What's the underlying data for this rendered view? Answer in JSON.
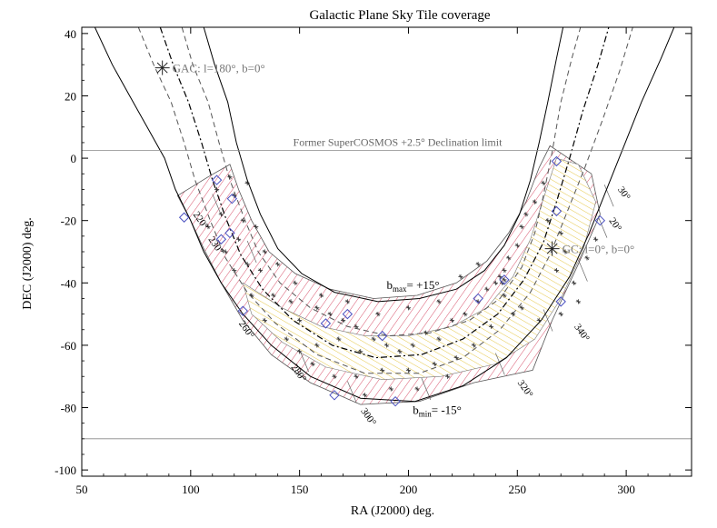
{
  "chart_data": {
    "type": "line",
    "title": "Galactic Plane Sky Tile coverage",
    "xlabel": "RA (J2000) deg.",
    "ylabel": "DEC (J2000) deg.",
    "xlim": [
      50,
      330
    ],
    "ylim": [
      -102,
      42
    ],
    "xticks": [
      50,
      100,
      150,
      200,
      250,
      300
    ],
    "yticks": [
      -100,
      -80,
      -60,
      -40,
      -20,
      0,
      20,
      40
    ],
    "reference_lines": [
      {
        "label": "Former SuperCOSMOS +2.5° Declination limit",
        "dec": 2.5
      },
      {
        "label": "",
        "dec": -90
      }
    ],
    "curves": {
      "outer_west": [
        [
          56,
          42
        ],
        [
          64,
          30
        ],
        [
          72,
          20
        ],
        [
          80,
          10
        ],
        [
          88,
          0
        ],
        [
          93,
          -10
        ],
        [
          100,
          -20
        ],
        [
          106,
          -30
        ],
        [
          114,
          -40
        ],
        [
          124,
          -50
        ],
        [
          137,
          -60
        ],
        [
          155,
          -70
        ],
        [
          178,
          -77
        ],
        [
          203,
          -78
        ],
        [
          225,
          -73
        ],
        [
          245,
          -64
        ],
        [
          261,
          -52
        ],
        [
          274,
          -38
        ],
        [
          283,
          -24
        ],
        [
          291,
          -10
        ],
        [
          299,
          4
        ],
        [
          307,
          18
        ],
        [
          316,
          32
        ],
        [
          322,
          42
        ]
      ],
      "dashed_west": [
        [
          76,
          42
        ],
        [
          83,
          30
        ],
        [
          91,
          18
        ],
        [
          97,
          5
        ],
        [
          102,
          -7
        ],
        [
          109,
          -20
        ],
        [
          116,
          -32
        ],
        [
          126,
          -43
        ],
        [
          139,
          -53
        ],
        [
          158,
          -63
        ],
        [
          180,
          -69
        ],
        [
          205,
          -69
        ],
        [
          225,
          -64
        ],
        [
          242,
          -55
        ],
        [
          256,
          -43
        ],
        [
          265,
          -31
        ],
        [
          273,
          -17
        ],
        [
          281,
          -3
        ],
        [
          289,
          12
        ],
        [
          297,
          28
        ],
        [
          303,
          42
        ]
      ],
      "plane": [
        [
          86,
          42
        ],
        [
          92,
          30
        ],
        [
          99,
          18
        ],
        [
          105,
          5
        ],
        [
          110,
          -7
        ],
        [
          116,
          -19
        ],
        [
          123,
          -31
        ],
        [
          133,
          -42
        ],
        [
          147,
          -52
        ],
        [
          165,
          -60
        ],
        [
          185,
          -64
        ],
        [
          206,
          -63
        ],
        [
          225,
          -58
        ],
        [
          241,
          -50
        ],
        [
          253,
          -39
        ],
        [
          262,
          -27
        ],
        [
          268,
          -14
        ],
        [
          274,
          0
        ],
        [
          280,
          15
        ],
        [
          287,
          30
        ],
        [
          292,
          42
        ]
      ],
      "dashed_east": [
        [
          96,
          42
        ],
        [
          101,
          30
        ],
        [
          108,
          18
        ],
        [
          113,
          5
        ],
        [
          118,
          -7
        ],
        [
          125,
          -20
        ],
        [
          131,
          -30
        ],
        [
          141,
          -40
        ],
        [
          155,
          -48
        ],
        [
          172,
          -54
        ],
        [
          191,
          -57
        ],
        [
          210,
          -56
        ],
        [
          228,
          -52
        ],
        [
          242,
          -45
        ],
        [
          252,
          -35
        ],
        [
          258,
          -24
        ],
        [
          262,
          -12
        ],
        [
          266,
          2
        ],
        [
          270,
          18
        ],
        [
          275,
          32
        ],
        [
          279,
          42
        ]
      ],
      "outer_east": [
        [
          106,
          42
        ],
        [
          111,
          30
        ],
        [
          117,
          18
        ],
        [
          121,
          5
        ],
        [
          126,
          -7
        ],
        [
          132,
          -18
        ],
        [
          140,
          -29
        ],
        [
          151,
          -37
        ],
        [
          166,
          -43
        ],
        [
          186,
          -46
        ],
        [
          205,
          -45
        ],
        [
          222,
          -42
        ],
        [
          235,
          -36
        ],
        [
          244,
          -28
        ],
        [
          251,
          -18
        ],
        [
          256,
          -7
        ],
        [
          260,
          5
        ],
        [
          264,
          18
        ],
        [
          268,
          32
        ],
        [
          271,
          42
        ]
      ]
    },
    "tile_region": {
      "outer": [
        [
          94,
          -12
        ],
        [
          108,
          -6
        ],
        [
          118,
          -2
        ],
        [
          122,
          -10
        ],
        [
          128,
          -20
        ],
        [
          136,
          -30
        ],
        [
          148,
          -37
        ],
        [
          164,
          -42
        ],
        [
          184,
          -45
        ],
        [
          204,
          -44
        ],
        [
          222,
          -40
        ],
        [
          236,
          -33
        ],
        [
          246,
          -24
        ],
        [
          254,
          -14
        ],
        [
          260,
          -3
        ],
        [
          265,
          4
        ],
        [
          284,
          -5
        ],
        [
          288,
          -18
        ],
        [
          278,
          -34
        ],
        [
          266,
          -52
        ],
        [
          257,
          -68
        ],
        [
          230,
          -72
        ],
        [
          205,
          -78
        ],
        [
          178,
          -79
        ],
        [
          155,
          -72
        ],
        [
          137,
          -63
        ],
        [
          124,
          -52
        ],
        [
          114,
          -40
        ],
        [
          106,
          -29
        ],
        [
          100,
          -20
        ]
      ],
      "yellow_band": [
        [
          124,
          -40
        ],
        [
          142,
          -48
        ],
        [
          160,
          -54
        ],
        [
          180,
          -57
        ],
        [
          200,
          -57
        ],
        [
          220,
          -54
        ],
        [
          236,
          -48
        ],
        [
          248,
          -38
        ],
        [
          256,
          -26
        ],
        [
          262,
          -13
        ],
        [
          268,
          0
        ],
        [
          278,
          -2
        ],
        [
          286,
          -14
        ],
        [
          280,
          -30
        ],
        [
          270,
          -45
        ],
        [
          258,
          -58
        ],
        [
          240,
          -66
        ],
        [
          215,
          -70
        ],
        [
          188,
          -71
        ],
        [
          162,
          -67
        ],
        [
          142,
          -59
        ],
        [
          128,
          -50
        ]
      ],
      "galactic_tick_positions": [
        [
          110,
          -15
        ],
        [
          126,
          -30
        ],
        [
          150,
          -65
        ],
        [
          172,
          -75
        ],
        [
          206,
          -74
        ],
        [
          240,
          -66
        ],
        [
          262,
          -52
        ],
        [
          278,
          -36
        ],
        [
          287,
          -22
        ],
        [
          290,
          -12
        ]
      ]
    },
    "annotations": [
      {
        "text": "GAC: l=180°, b=0°",
        "ra": 87,
        "dec": 29
      },
      {
        "text": "GC: l=0°, b=0°",
        "ra": 266,
        "dec": -29
      },
      {
        "text": "b",
        "sub": "max",
        "tail": "= +15°",
        "ra": 190,
        "dec": -42
      },
      {
        "text": "b",
        "sub": "min",
        "tail": "= -15°",
        "ra": 202,
        "dec": -82
      }
    ],
    "galactic_longitude_labels": [
      {
        "text": "220°",
        "ra": 101,
        "dec": -18
      },
      {
        "text": "230°",
        "ra": 108,
        "dec": -26
      },
      {
        "text": "260°",
        "ra": 122,
        "dec": -53
      },
      {
        "text": "280°",
        "ra": 146,
        "dec": -67
      },
      {
        "text": "300°",
        "ra": 178,
        "dec": -81
      },
      {
        "text": "320°",
        "ra": 250,
        "dec": -72
      },
      {
        "text": "340°",
        "ra": 276,
        "dec": -54
      },
      {
        "text": "20°",
        "ra": 292,
        "dec": -20
      },
      {
        "text": "30°",
        "ra": 296,
        "dec": -10
      }
    ],
    "stars": [
      [
        118,
        -6
      ],
      [
        112,
        -10
      ],
      [
        120,
        -12
      ],
      [
        126,
        -8
      ],
      [
        108,
        -22
      ],
      [
        114,
        -18
      ],
      [
        122,
        -26
      ],
      [
        130,
        -22
      ],
      [
        126,
        -34
      ],
      [
        134,
        -30
      ],
      [
        140,
        -34
      ],
      [
        138,
        -44
      ],
      [
        146,
        -46
      ],
      [
        150,
        -52
      ],
      [
        158,
        -48
      ],
      [
        164,
        -50
      ],
      [
        170,
        -52
      ],
      [
        176,
        -54
      ],
      [
        168,
        -58
      ],
      [
        158,
        -60
      ],
      [
        150,
        -62
      ],
      [
        178,
        -62
      ],
      [
        184,
        -58
      ],
      [
        190,
        -60
      ],
      [
        196,
        -62
      ],
      [
        202,
        -60
      ],
      [
        208,
        -56
      ],
      [
        214,
        -58
      ],
      [
        220,
        -52
      ],
      [
        226,
        -50
      ],
      [
        232,
        -46
      ],
      [
        236,
        -42
      ],
      [
        240,
        -40
      ],
      [
        244,
        -36
      ],
      [
        246,
        -32
      ],
      [
        250,
        -28
      ],
      [
        252,
        -22
      ],
      [
        254,
        -18
      ],
      [
        258,
        -14
      ],
      [
        262,
        -8
      ],
      [
        264,
        -20
      ],
      [
        270,
        -24
      ],
      [
        272,
        -30
      ],
      [
        268,
        -36
      ],
      [
        276,
        -40
      ],
      [
        282,
        -32
      ],
      [
        286,
        -26
      ],
      [
        278,
        -46
      ],
      [
        270,
        -50
      ],
      [
        260,
        -52
      ],
      [
        252,
        -48
      ],
      [
        244,
        -44
      ],
      [
        238,
        -54
      ],
      [
        230,
        -60
      ],
      [
        222,
        -64
      ],
      [
        212,
        -66
      ],
      [
        200,
        -68
      ],
      [
        188,
        -68
      ],
      [
        176,
        -70
      ],
      [
        166,
        -70
      ],
      [
        156,
        -66
      ],
      [
        144,
        -58
      ],
      [
        134,
        -52
      ],
      [
        128,
        -44
      ],
      [
        120,
        -36
      ],
      [
        116,
        -30
      ],
      [
        180,
        -76
      ],
      [
        192,
        -74
      ],
      [
        204,
        -74
      ],
      [
        218,
        -70
      ],
      [
        242,
        -38
      ],
      [
        243,
        -40
      ],
      [
        244,
        -39
      ],
      [
        248,
        -50
      ],
      [
        232,
        -34
      ],
      [
        224,
        -38
      ],
      [
        214,
        -46
      ],
      [
        200,
        -48
      ],
      [
        186,
        -50
      ],
      [
        172,
        -46
      ],
      [
        160,
        -44
      ],
      [
        148,
        -40
      ],
      [
        132,
        -36
      ],
      [
        124,
        -20
      ]
    ],
    "diamonds": [
      [
        112,
        -7
      ],
      [
        119,
        -13
      ],
      [
        97,
        -19
      ],
      [
        114,
        -26
      ],
      [
        118,
        -24
      ],
      [
        124,
        -49
      ],
      [
        162,
        -53
      ],
      [
        172,
        -50
      ],
      [
        188,
        -57
      ],
      [
        166,
        -76
      ],
      [
        194,
        -78
      ],
      [
        232,
        -45
      ],
      [
        244,
        -39
      ],
      [
        268,
        -17
      ],
      [
        268,
        -1
      ],
      [
        288,
        -20
      ],
      [
        270,
        -46
      ]
    ],
    "grid": false,
    "legend": "none"
  }
}
